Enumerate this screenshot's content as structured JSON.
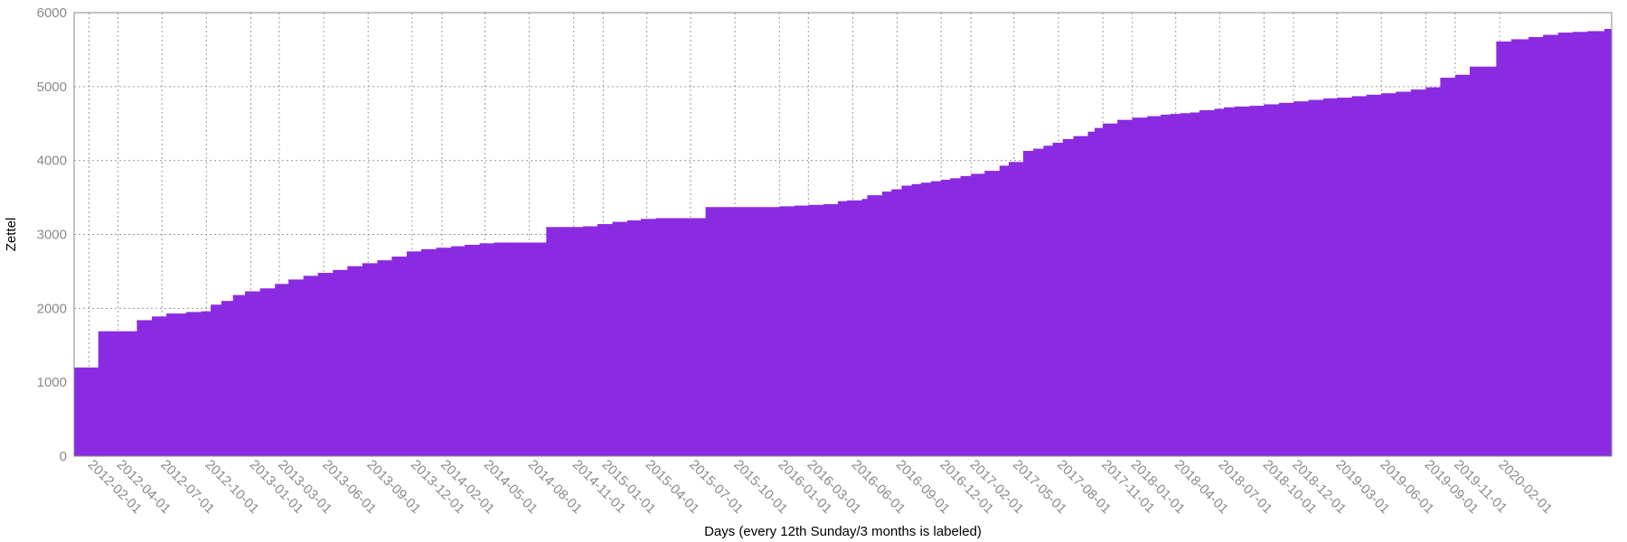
{
  "chart_data": {
    "type": "area",
    "step": true,
    "xlabel": "Days (every 12th Sunday/3 months is labeled)",
    "ylabel": "Zettel",
    "ylim": [
      0,
      6000
    ],
    "xlim": [
      "2012-01-01",
      "2020-09-20"
    ],
    "yticks": [
      0,
      1000,
      2000,
      3000,
      4000,
      5000,
      6000
    ],
    "xticks": [
      "2012-02-01",
      "2012-04-01",
      "2012-07-01",
      "2012-10-01",
      "2013-01-01",
      "2013-03-01",
      "2013-06-01",
      "2013-09-01",
      "2013-12-01",
      "2014-02-01",
      "2014-05-01",
      "2014-08-01",
      "2014-11-01",
      "2015-01-01",
      "2015-04-01",
      "2015-07-01",
      "2015-10-01",
      "2016-01-01",
      "2016-03-01",
      "2016-06-01",
      "2016-09-01",
      "2016-12-01",
      "2017-02-01",
      "2017-05-01",
      "2017-08-01",
      "2017-11-01",
      "2018-01-01",
      "2018-04-01",
      "2018-07-01",
      "2018-10-01",
      "2018-12-01",
      "2019-03-01",
      "2019-06-01",
      "2019-09-01",
      "2019-11-01",
      "2020-02-01"
    ],
    "grid": true,
    "colors": {
      "fill": "#8a2be2",
      "frame": "#888888",
      "grid": "#9a9a9a"
    },
    "x": [
      "2012-01-01",
      "2012-02-20",
      "2012-05-10",
      "2012-06-10",
      "2012-07-10",
      "2012-08-20",
      "2012-09-20",
      "2012-10-10",
      "2012-11-01",
      "2012-11-25",
      "2012-12-20",
      "2013-01-20",
      "2013-02-20",
      "2013-03-20",
      "2013-04-20",
      "2013-05-20",
      "2013-06-20",
      "2013-07-20",
      "2013-08-20",
      "2013-09-20",
      "2013-10-20",
      "2013-11-20",
      "2013-12-20",
      "2014-01-20",
      "2014-02-20",
      "2014-03-20",
      "2014-04-20",
      "2014-05-20",
      "2014-06-20",
      "2014-09-05",
      "2014-10-20",
      "2014-11-20",
      "2014-12-20",
      "2015-01-20",
      "2015-02-20",
      "2015-03-20",
      "2015-04-20",
      "2015-05-20",
      "2015-08-01",
      "2015-10-10",
      "2015-12-01",
      "2016-01-01",
      "2016-02-01",
      "2016-03-01",
      "2016-04-01",
      "2016-05-01",
      "2016-05-20",
      "2016-06-20",
      "2016-07-01",
      "2016-08-01",
      "2016-08-20",
      "2016-09-10",
      "2016-10-01",
      "2016-10-20",
      "2016-11-10",
      "2016-12-01",
      "2016-12-20",
      "2017-01-10",
      "2017-02-01",
      "2017-03-01",
      "2017-04-01",
      "2017-04-20",
      "2017-05-20",
      "2017-06-10",
      "2017-07-01",
      "2017-07-20",
      "2017-08-10",
      "2017-09-01",
      "2017-10-01",
      "2017-10-15",
      "2017-11-01",
      "2017-12-01",
      "2018-01-01",
      "2018-02-01",
      "2018-03-01",
      "2018-03-20",
      "2018-04-10",
      "2018-05-01",
      "2018-05-20",
      "2018-06-20",
      "2018-07-10",
      "2018-08-01",
      "2018-09-01",
      "2018-10-01",
      "2018-11-01",
      "2018-12-01",
      "2019-01-01",
      "2019-02-01",
      "2019-03-01",
      "2019-04-01",
      "2019-05-01",
      "2019-06-01",
      "2019-07-01",
      "2019-08-01",
      "2019-09-01",
      "2019-10-01",
      "2019-11-01",
      "2019-12-01",
      "2020-01-01",
      "2020-01-25",
      "2020-02-25",
      "2020-04-01",
      "2020-05-01",
      "2020-06-01",
      "2020-07-01",
      "2020-08-01",
      "2020-09-05"
    ],
    "y": [
      1200,
      1690,
      1840,
      1890,
      1930,
      1950,
      1960,
      2050,
      2100,
      2180,
      2230,
      2270,
      2330,
      2390,
      2440,
      2480,
      2520,
      2570,
      2610,
      2650,
      2700,
      2770,
      2800,
      2820,
      2840,
      2860,
      2880,
      2890,
      2890,
      3100,
      3100,
      3110,
      3140,
      3170,
      3190,
      3210,
      3220,
      3220,
      3370,
      3370,
      3370,
      3380,
      3390,
      3400,
      3410,
      3450,
      3460,
      3480,
      3530,
      3580,
      3610,
      3660,
      3680,
      3700,
      3720,
      3740,
      3760,
      3790,
      3820,
      3860,
      3930,
      3980,
      4130,
      4160,
      4200,
      4240,
      4290,
      4330,
      4390,
      4440,
      4500,
      4550,
      4580,
      4600,
      4620,
      4630,
      4640,
      4650,
      4680,
      4700,
      4720,
      4730,
      4740,
      4760,
      4780,
      4800,
      4820,
      4840,
      4850,
      4870,
      4890,
      4910,
      4930,
      4960,
      4990,
      5120,
      5160,
      5270,
      5270,
      5610,
      5640,
      5670,
      5700,
      5730,
      5740,
      5750,
      5780
    ]
  }
}
